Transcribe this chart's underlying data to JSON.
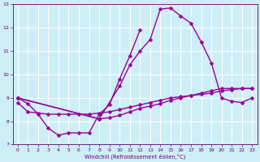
{
  "xlabel": "Windchill (Refroidissement éolien,°C)",
  "xlim": [
    -0.5,
    23.5
  ],
  "ylim": [
    7,
    13
  ],
  "yticks": [
    7,
    8,
    9,
    10,
    11,
    12,
    13
  ],
  "xticks": [
    0,
    1,
    2,
    3,
    4,
    5,
    6,
    7,
    8,
    9,
    10,
    11,
    12,
    13,
    14,
    15,
    16,
    17,
    18,
    19,
    20,
    21,
    22,
    23
  ],
  "background_color": "#cdeef7",
  "grid_color": "#ffffff",
  "line_color": "#990099",
  "line_width": 1.0,
  "marker": "D",
  "marker_size": 2.5,
  "curves": [
    {
      "x": [
        0,
        1,
        2,
        3,
        4,
        5,
        6,
        7,
        8,
        9,
        10,
        11,
        12
      ],
      "y": [
        9.0,
        8.75,
        8.3,
        7.7,
        7.4,
        7.5,
        7.5,
        7.5,
        8.3,
        8.7,
        9.8,
        10.8,
        11.9
      ]
    },
    {
      "x": [
        0,
        8,
        10,
        11,
        12,
        13,
        14,
        15,
        16,
        17,
        18,
        19,
        20,
        21,
        22,
        23
      ],
      "y": [
        9.0,
        8.1,
        9.5,
        10.4,
        11.0,
        11.5,
        12.8,
        12.85,
        12.5,
        12.2,
        11.4,
        10.5,
        9.0,
        8.85,
        8.8,
        9.0
      ]
    },
    {
      "x": [
        0,
        1,
        2,
        3,
        4,
        5,
        6,
        7,
        8,
        9,
        10,
        11,
        12,
        13,
        14,
        15,
        16,
        17,
        18,
        19,
        20,
        21,
        22,
        23
      ],
      "y": [
        8.8,
        8.4,
        8.35,
        8.3,
        8.3,
        8.3,
        8.3,
        8.3,
        8.35,
        8.4,
        8.5,
        8.6,
        8.7,
        8.8,
        8.9,
        9.0,
        9.05,
        9.1,
        9.15,
        9.2,
        9.3,
        9.35,
        9.4,
        9.4
      ]
    },
    {
      "x": [
        0,
        8,
        9,
        10,
        11,
        12,
        13,
        14,
        15,
        16,
        17,
        18,
        19,
        20,
        21,
        22,
        23
      ],
      "y": [
        9.0,
        8.1,
        8.15,
        8.25,
        8.4,
        8.55,
        8.65,
        8.75,
        8.9,
        9.0,
        9.1,
        9.2,
        9.3,
        9.4,
        9.4,
        9.4,
        9.4
      ]
    }
  ]
}
